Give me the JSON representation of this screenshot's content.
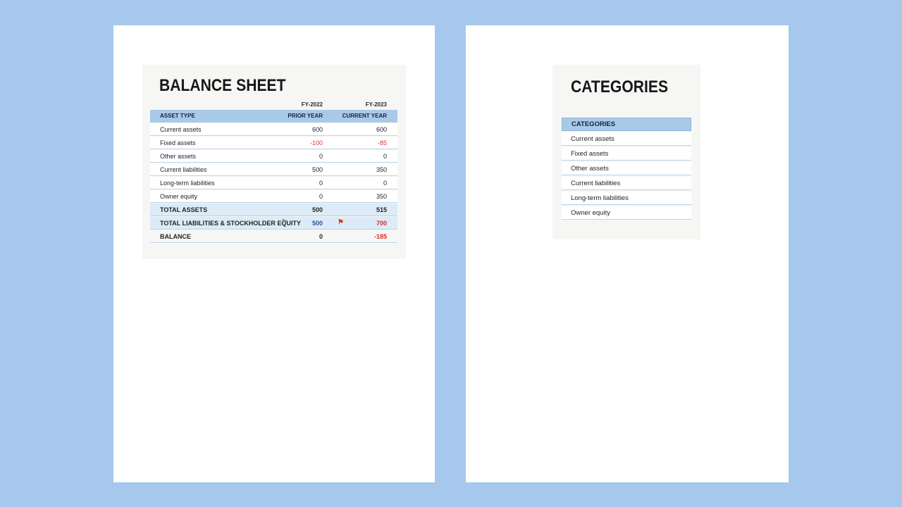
{
  "colors": {
    "page_background": "#a6c8ec",
    "panel_background": "#ffffff",
    "card_background": "#f6f6f4",
    "table_header_blue": "#a9c9e9",
    "total_row_blue": "#dcebf7",
    "row_divider_blue": "#bdd4ea",
    "negative_red": "#e0342c",
    "flagged_value_blue": "#2456a4",
    "flagged_value_red": "#d92b23",
    "gray_flag": "#7e948c",
    "red_flag": "#cf4125"
  },
  "balance_sheet": {
    "title": "BALANCE SHEET",
    "fy_prior_label": "FY-2022",
    "fy_current_label": "FY-2023",
    "header": {
      "asset_type": "ASSET TYPE",
      "prior_year": "PRIOR YEAR",
      "current_year": "CURRENT YEAR"
    },
    "rows": [
      {
        "label": "Current assets",
        "prior": "600",
        "current": "600"
      },
      {
        "label": "Fixed assets",
        "prior": "-100",
        "current": "-85"
      },
      {
        "label": "Other assets",
        "prior": "0",
        "current": "0"
      },
      {
        "label": "Current liabilities",
        "prior": "500",
        "current": "350"
      },
      {
        "label": "Long-term liabilities",
        "prior": "0",
        "current": "0"
      },
      {
        "label": "Owner equity",
        "prior": "0",
        "current": "350"
      }
    ],
    "total_assets": {
      "label": "TOTAL ASSETS",
      "prior": "500",
      "current": "515"
    },
    "total_liabilities": {
      "label": "TOTAL LIABILITIES & STOCKHOLDER EQUITY",
      "prior": "500",
      "current": "700",
      "prior_flag_icon": "gray-flag-icon",
      "current_flag_icon": "red-flag-icon",
      "flag_glyph": "⚑"
    },
    "balance": {
      "label": "BALANCE",
      "prior": "0",
      "current": "-185"
    }
  },
  "categories": {
    "title": "CATEGORIES",
    "header": "CATEGORIES",
    "items": [
      "Current assets",
      "Fixed assets",
      "Other assets",
      "Current liabilities",
      "Long-term liabilities",
      "Owner equity"
    ]
  }
}
